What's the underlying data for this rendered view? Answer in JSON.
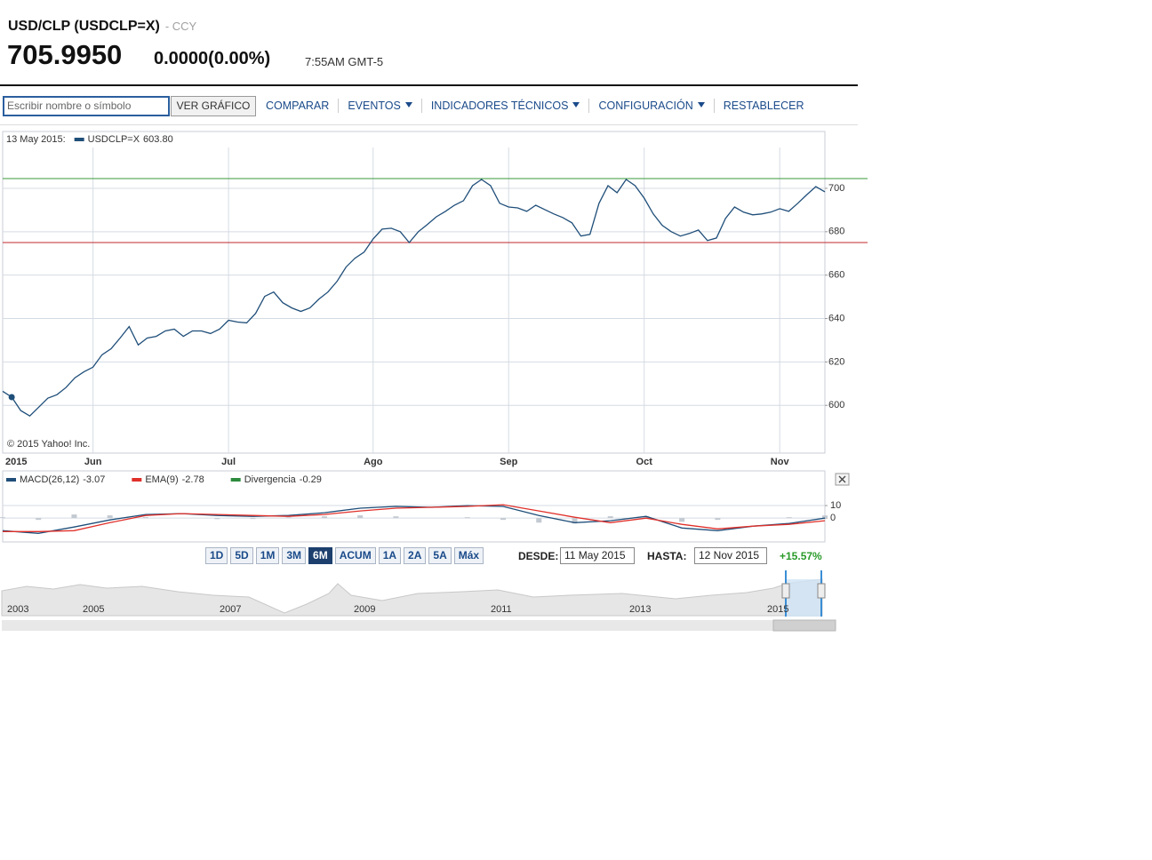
{
  "header": {
    "title": "USD/CLP (USDCLP=X)",
    "exchange": "- CCY",
    "price": "705.9950",
    "change": "0.0000(0.00%)",
    "time": "7:55AM GMT-5"
  },
  "toolbar": {
    "search_placeholder": "Escribir nombre o símbolo",
    "view_button": "VER GRÁFICO",
    "menu": [
      {
        "label": "COMPARAR",
        "dropdown": false
      },
      {
        "label": "EVENTOS",
        "dropdown": true
      },
      {
        "label": "INDICADORES TÉCNICOS",
        "dropdown": true
      },
      {
        "label": "CONFIGURACIÓN",
        "dropdown": true
      },
      {
        "label": "RESTABLECER",
        "dropdown": false
      }
    ]
  },
  "chart_data": [
    {
      "type": "line",
      "readout_date": "13 May 2015:",
      "copyright": "© 2015 Yahoo! Inc.",
      "grid": true,
      "categories": [
        "2015",
        null,
        null,
        null,
        null,
        null,
        null,
        null,
        null,
        null,
        "Jun",
        null,
        null,
        null,
        null,
        null,
        null,
        null,
        null,
        null,
        null,
        null,
        null,
        null,
        null,
        "Jul",
        null,
        null,
        null,
        null,
        null,
        null,
        null,
        null,
        null,
        null,
        null,
        null,
        null,
        null,
        null,
        "Ago",
        null,
        null,
        null,
        null,
        null,
        null,
        null,
        null,
        null,
        null,
        null,
        null,
        null,
        null,
        "Sep",
        null,
        null,
        null,
        null,
        null,
        null,
        null,
        null,
        null,
        null,
        null,
        null,
        null,
        null,
        "Oct",
        null,
        null,
        null,
        null,
        null,
        null,
        null,
        null,
        null,
        null,
        null,
        null,
        null,
        null,
        "Nov",
        null,
        null,
        null,
        null,
        null
      ],
      "series": [
        {
          "name": "USDCLP=X",
          "readout": "603.80",
          "color": "#1f4e79",
          "values": [
            606.5,
            603.8,
            597.6,
            595.1,
            599.2,
            603.3,
            604.9,
            608.2,
            612.7,
            615.5,
            617.6,
            623.3,
            626.1,
            631.0,
            636.3,
            627.8,
            631.0,
            631.8,
            634.3,
            635.1,
            631.8,
            634.3,
            634.3,
            633.1,
            635.1,
            639.2,
            638.4,
            638.0,
            642.4,
            650.2,
            652.2,
            647.3,
            644.9,
            643.3,
            644.9,
            649.0,
            652.2,
            657.1,
            663.7,
            667.8,
            670.6,
            676.7,
            681.2,
            681.6,
            680.0,
            675.0,
            680.0,
            683.3,
            686.9,
            689.4,
            692.2,
            694.3,
            701.2,
            704.1,
            701.2,
            693.1,
            691.4,
            691.0,
            689.4,
            692.2,
            690.2,
            688.2,
            686.5,
            684.1,
            678.0,
            678.8,
            693.1,
            701.2,
            698.0,
            704.1,
            701.2,
            695.5,
            688.2,
            682.9,
            680.0,
            678.0,
            679.2,
            680.8,
            675.9,
            677.1,
            686.1,
            691.4,
            689.0,
            687.8,
            688.2,
            689.0,
            690.6,
            689.4,
            693.1,
            697.1,
            700.8,
            698.4
          ]
        }
      ],
      "ylim": [
        578,
        718
      ],
      "yticks": [
        600,
        620,
        640,
        660,
        680,
        700
      ],
      "reference_lines": [
        {
          "value": 704.5,
          "color": "#3a9a3a"
        },
        {
          "value": 675,
          "color": "#c0282d"
        }
      ]
    },
    {
      "type": "line",
      "grid": true,
      "categories": [
        null,
        null,
        null,
        null,
        null,
        null,
        null,
        null,
        null,
        null,
        null,
        null,
        null,
        null,
        null,
        null,
        null,
        null,
        null,
        null,
        null,
        null,
        null,
        null
      ],
      "series": [
        {
          "name": "MACD(26,12)",
          "readout": "-3.07",
          "color": "#1f4e79",
          "values": [
            -10,
            -12.1,
            -7.1,
            -1.4,
            2.9,
            3.6,
            2.1,
            1.4,
            2.1,
            4.3,
            7.9,
            9.3,
            8.6,
            10,
            9.3,
            2.1,
            -3.6,
            -2.1,
            1.4,
            -7.9,
            -10,
            -6.4,
            -4.3,
            0
          ]
        },
        {
          "name": "EMA(9)",
          "readout": "-2.78",
          "color": "#e0302a",
          "values": [
            -10.7,
            -10.7,
            -10,
            -3.6,
            2.1,
            3.6,
            2.9,
            2.1,
            1.4,
            2.9,
            5.7,
            7.9,
            8.6,
            9.3,
            10.7,
            5.7,
            0.7,
            -3.6,
            0,
            -5,
            -8.6,
            -6.4,
            -5,
            -2.1
          ]
        },
        {
          "name": "Divergencia",
          "readout": "-0.29",
          "color": "#2e8b3e",
          "bar_color": "#c3c9d1",
          "type": "bar",
          "values": [
            0.7,
            -1.4,
            2.9,
            2.2,
            0.8,
            0,
            -0.8,
            -0.7,
            0.7,
            1.4,
            2.2,
            1.4,
            0,
            0.7,
            -1.4,
            -3.6,
            -4.3,
            1.5,
            1.4,
            -2.9,
            -1.4,
            0,
            0.7,
            2.1
          ]
        }
      ],
      "ylim": [
        -19,
        23.5
      ],
      "yticks": [
        0,
        10
      ]
    }
  ],
  "range": {
    "buttons": [
      "1D",
      "5D",
      "1M",
      "3M",
      "6M",
      "ACUM",
      "1A",
      "2A",
      "5A",
      "Máx"
    ],
    "selected": "6M",
    "from_label": "DESDE:",
    "from": "11 May 2015",
    "to_label": "HASTA:",
    "to": "12 Nov 2015",
    "change": "+15.57%"
  },
  "navigator": {
    "years": [
      "2003",
      "2005",
      "2007",
      "2009",
      "2011",
      "2013",
      "2015"
    ]
  }
}
